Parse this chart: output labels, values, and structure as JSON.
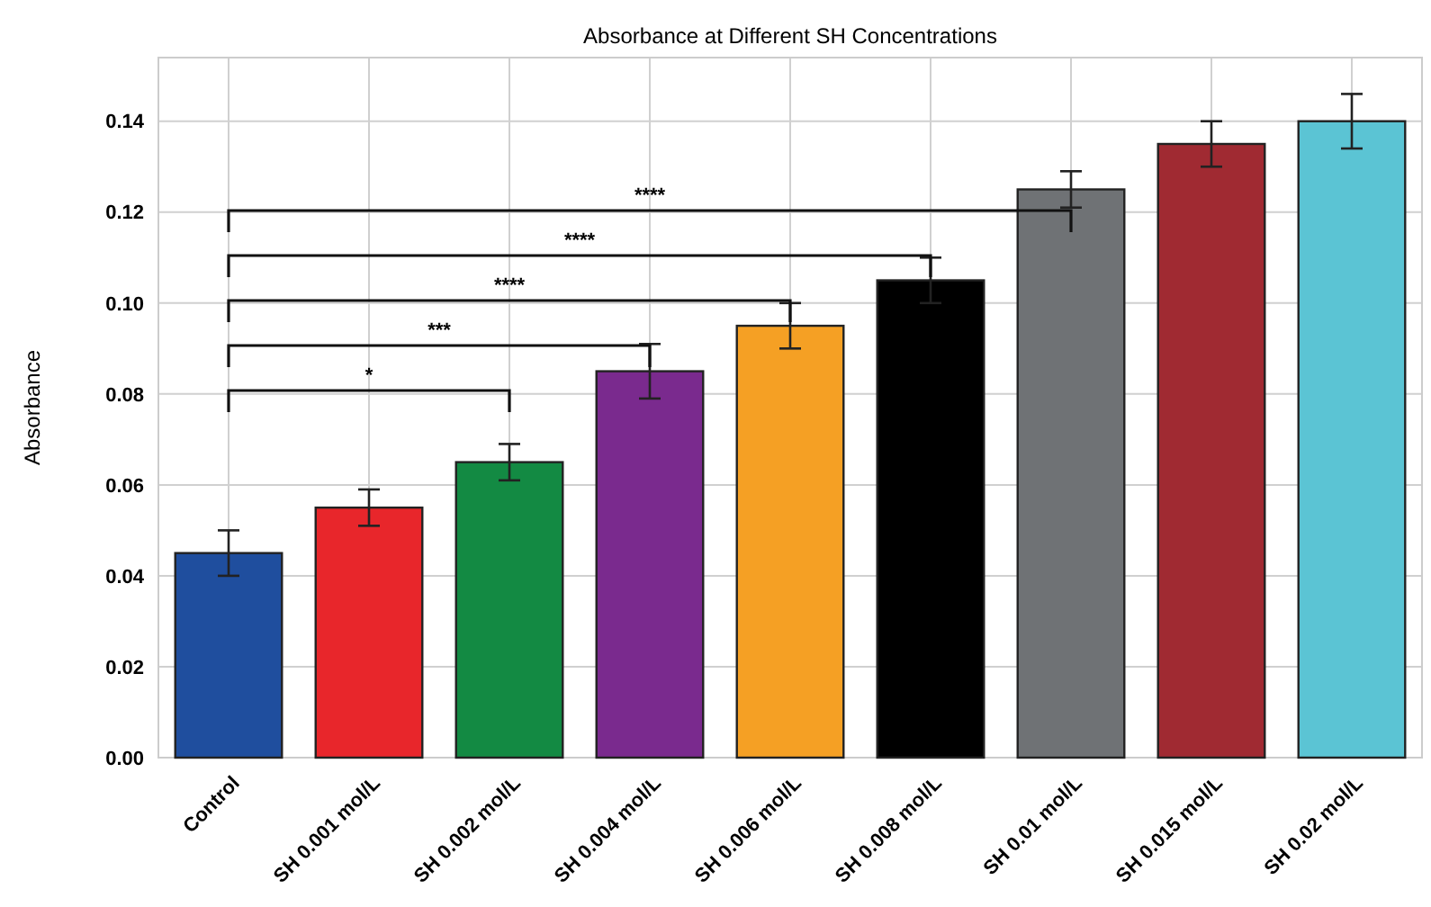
{
  "chart_data": {
    "type": "bar",
    "title": "Absorbance at Different SH Concentrations",
    "ylabel": "Absorbance",
    "categories": [
      "Control",
      "SH 0.001 mol/L",
      "SH 0.002 mol/L",
      "SH 0.004 mol/L",
      "SH 0.006 mol/L",
      "SH 0.008 mol/L",
      "SH 0.01 mol/L",
      "SH 0.015 mol/L",
      "SH 0.02 mol/L"
    ],
    "values": [
      0.045,
      0.055,
      0.065,
      0.085,
      0.095,
      0.105,
      0.125,
      0.135,
      0.14
    ],
    "errors": [
      0.005,
      0.004,
      0.004,
      0.006,
      0.005,
      0.005,
      0.004,
      0.005,
      0.006
    ],
    "colors": [
      "#1f4e9e",
      "#e8262b",
      "#138a43",
      "#7a2a8e",
      "#f5a024",
      "#000000",
      "#6f7275",
      "#a02a32",
      "#5bc4d4"
    ],
    "ylim": [
      0,
      0.154
    ],
    "yticks": [
      {
        "value": 0,
        "label": "0.00"
      },
      0.02,
      0.04,
      0.06,
      0.08,
      {
        "value": 0.1,
        "label": "0.10"
      },
      0.12,
      0.14
    ],
    "grid": true,
    "annotations": [
      "*",
      "***",
      "****",
      "****",
      "****"
    ]
  }
}
